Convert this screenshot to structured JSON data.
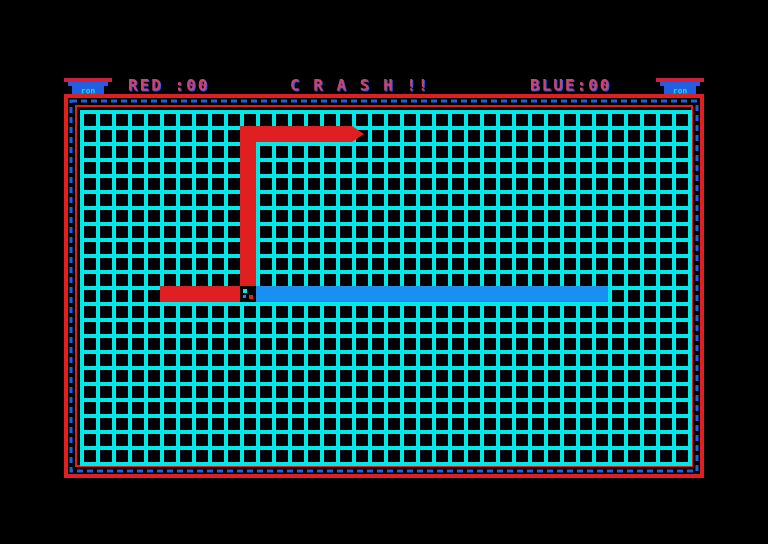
{
  "header": {
    "red_score": "RED :00",
    "message": "C R A S H !!",
    "blue_score": "BLUE:00"
  },
  "icons": [
    "ron",
    "ron"
  ]
}
